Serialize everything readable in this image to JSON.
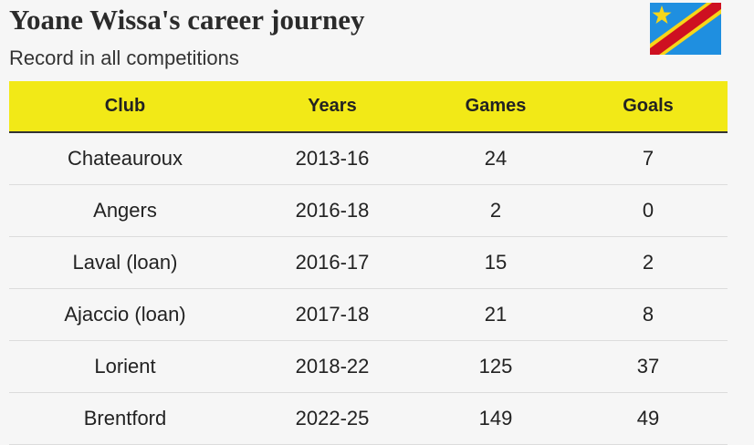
{
  "header": {
    "title": "Yoane Wissa's career journey",
    "subtitle": "Record in all competitions"
  },
  "table": {
    "columns": [
      "Club",
      "Years",
      "Games",
      "Goals"
    ],
    "rows": [
      [
        "Chateauroux",
        "2013-16",
        24,
        7
      ],
      [
        "Angers",
        "2016-18",
        2,
        0
      ],
      [
        "Laval (loan)",
        "2016-17",
        15,
        2
      ],
      [
        "Ajaccio (loan)",
        "2017-18",
        21,
        8
      ],
      [
        "Lorient",
        "2018-22",
        125,
        37
      ],
      [
        "Brentford",
        "2022-25",
        149,
        49
      ]
    ]
  }
}
